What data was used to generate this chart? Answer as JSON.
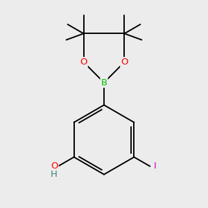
{
  "background_color": "#ececec",
  "atom_colors": {
    "B": "#00bb00",
    "O": "#ff0000",
    "I": "#cc00cc",
    "H": "#408080",
    "C": "#000000"
  },
  "bond_color": "#000000",
  "bond_width": 1.4,
  "dbo": 0.022,
  "figsize": [
    3.0,
    3.0
  ],
  "dpi": 100
}
